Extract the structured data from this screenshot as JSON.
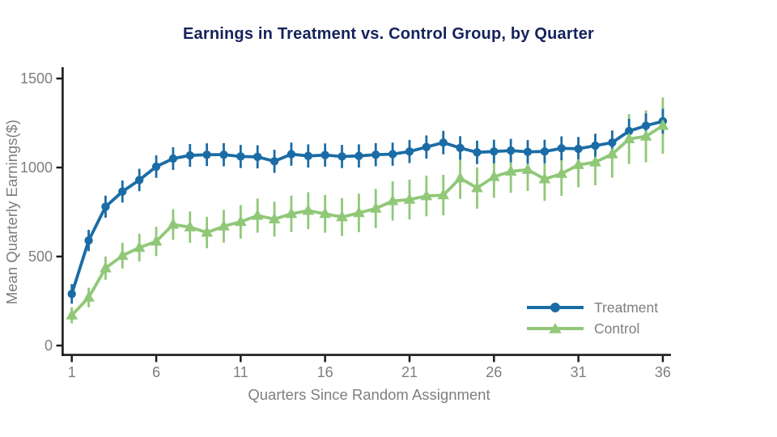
{
  "title": {
    "text": "Earnings in Treatment vs. Control Group, by Quarter"
  },
  "colors": {
    "treatment": "#1b6ca6",
    "control": "#90c878",
    "axis": "#1a1a1a",
    "text_gray": "#7e7e7e",
    "title_navy": "#15235b",
    "background": "#ffffff"
  },
  "chart_data": {
    "type": "line",
    "title": "Earnings in Treatment vs. Control Group, by Quarter",
    "xlabel": "Quarters Since Random Assignment",
    "ylabel": "Mean Quarterly Earnings($)",
    "x": [
      1,
      2,
      3,
      4,
      5,
      6,
      7,
      8,
      9,
      10,
      11,
      12,
      13,
      14,
      15,
      16,
      17,
      18,
      19,
      20,
      21,
      22,
      23,
      24,
      25,
      26,
      27,
      28,
      29,
      30,
      31,
      32,
      33,
      34,
      35,
      36
    ],
    "xticks": [
      1,
      6,
      11,
      16,
      21,
      26,
      31,
      36
    ],
    "yticks": [
      0,
      500,
      1000,
      1500
    ],
    "xlim": [
      1,
      36
    ],
    "ylim": [
      0,
      1500
    ],
    "grid": false,
    "error_bars": true,
    "legend_position": "inside bottom-right",
    "series": [
      {
        "name": "Treatment",
        "marker": "circle",
        "color": "#1b6ca6",
        "values": [
          290,
          590,
          780,
          865,
          930,
          1005,
          1050,
          1068,
          1072,
          1072,
          1062,
          1060,
          1035,
          1075,
          1065,
          1070,
          1062,
          1065,
          1072,
          1075,
          1090,
          1115,
          1140,
          1110,
          1085,
          1090,
          1095,
          1088,
          1090,
          1108,
          1105,
          1123,
          1140,
          1205,
          1235,
          1260
        ],
        "ci_halfwidth": [
          55,
          60,
          62,
          62,
          63,
          63,
          64,
          64,
          64,
          65,
          65,
          65,
          65,
          65,
          65,
          65,
          65,
          65,
          65,
          65,
          65,
          65,
          66,
          66,
          66,
          66,
          66,
          66,
          66,
          67,
          67,
          67,
          68,
          68,
          69,
          70
        ]
      },
      {
        "name": "Control",
        "marker": "triangle",
        "color": "#90c878",
        "values": [
          170,
          270,
          435,
          505,
          550,
          585,
          680,
          665,
          635,
          670,
          695,
          730,
          710,
          740,
          758,
          740,
          722,
          745,
          770,
          812,
          820,
          840,
          845,
          940,
          885,
          948,
          978,
          988,
          935,
          965,
          1015,
          1030,
          1075,
          1160,
          1175,
          1235
        ],
        "ci_halfwidth": [
          45,
          55,
          65,
          72,
          78,
          82,
          86,
          88,
          88,
          92,
          94,
          96,
          98,
          102,
          104,
          106,
          106,
          108,
          110,
          110,
          112,
          114,
          114,
          116,
          116,
          118,
          120,
          120,
          122,
          124,
          126,
          130,
          132,
          140,
          146,
          158
        ]
      }
    ]
  }
}
